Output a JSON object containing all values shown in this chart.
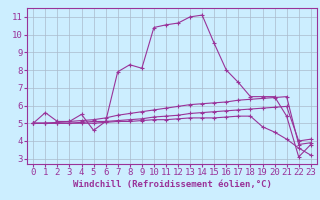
{
  "background_color": "#cceeff",
  "grid_color": "#aabbcc",
  "line_color": "#993399",
  "xlabel": "Windchill (Refroidissement éolien,°C)",
  "xlim": [
    -0.5,
    23.5
  ],
  "ylim": [
    2.7,
    11.5
  ],
  "yticks": [
    3,
    4,
    5,
    6,
    7,
    8,
    9,
    10,
    11
  ],
  "xticks": [
    0,
    1,
    2,
    3,
    4,
    5,
    6,
    7,
    8,
    9,
    10,
    11,
    12,
    13,
    14,
    15,
    16,
    17,
    18,
    19,
    20,
    21,
    22,
    23
  ],
  "tick_fontsize": 6.5,
  "xlabel_fontsize": 6.5,
  "lines": [
    {
      "x": [
        0,
        1,
        2,
        3,
        4,
        5,
        6,
        7,
        8,
        9,
        10,
        11,
        12,
        13,
        14,
        15,
        16,
        17,
        18,
        19,
        20,
        21,
        22,
        23
      ],
      "y": [
        5.0,
        5.6,
        5.1,
        5.1,
        5.5,
        4.6,
        5.1,
        7.9,
        8.3,
        8.1,
        10.4,
        10.55,
        10.65,
        11.0,
        11.1,
        9.5,
        8.0,
        7.3,
        6.5,
        6.5,
        6.5,
        5.4,
        3.1,
        3.8
      ]
    },
    {
      "x": [
        0,
        1,
        2,
        3,
        4,
        5,
        6,
        7,
        8,
        9,
        10,
        11,
        12,
        13,
        14,
        15,
        16,
        17,
        18,
        19,
        20,
        21,
        22,
        23
      ],
      "y": [
        5.0,
        5.0,
        5.05,
        5.1,
        5.15,
        5.2,
        5.3,
        5.45,
        5.55,
        5.65,
        5.75,
        5.85,
        5.95,
        6.05,
        6.1,
        6.15,
        6.2,
        6.3,
        6.35,
        6.4,
        6.45,
        6.5,
        3.8,
        3.9
      ]
    },
    {
      "x": [
        0,
        1,
        2,
        3,
        4,
        5,
        6,
        7,
        8,
        9,
        10,
        11,
        12,
        13,
        14,
        15,
        16,
        17,
        18,
        19,
        20,
        21,
        22,
        23
      ],
      "y": [
        5.0,
        5.0,
        5.0,
        5.0,
        5.05,
        5.1,
        5.1,
        5.15,
        5.2,
        5.25,
        5.35,
        5.4,
        5.45,
        5.55,
        5.6,
        5.65,
        5.7,
        5.75,
        5.8,
        5.85,
        5.9,
        5.95,
        4.0,
        4.1
      ]
    },
    {
      "x": [
        0,
        1,
        2,
        3,
        4,
        5,
        6,
        7,
        8,
        9,
        10,
        11,
        12,
        13,
        14,
        15,
        16,
        17,
        18,
        19,
        20,
        21,
        22,
        23
      ],
      "y": [
        5.0,
        5.0,
        5.0,
        5.0,
        5.0,
        5.0,
        5.05,
        5.1,
        5.1,
        5.15,
        5.2,
        5.2,
        5.25,
        5.3,
        5.3,
        5.3,
        5.35,
        5.4,
        5.4,
        4.8,
        4.5,
        4.1,
        3.6,
        3.2
      ]
    }
  ]
}
